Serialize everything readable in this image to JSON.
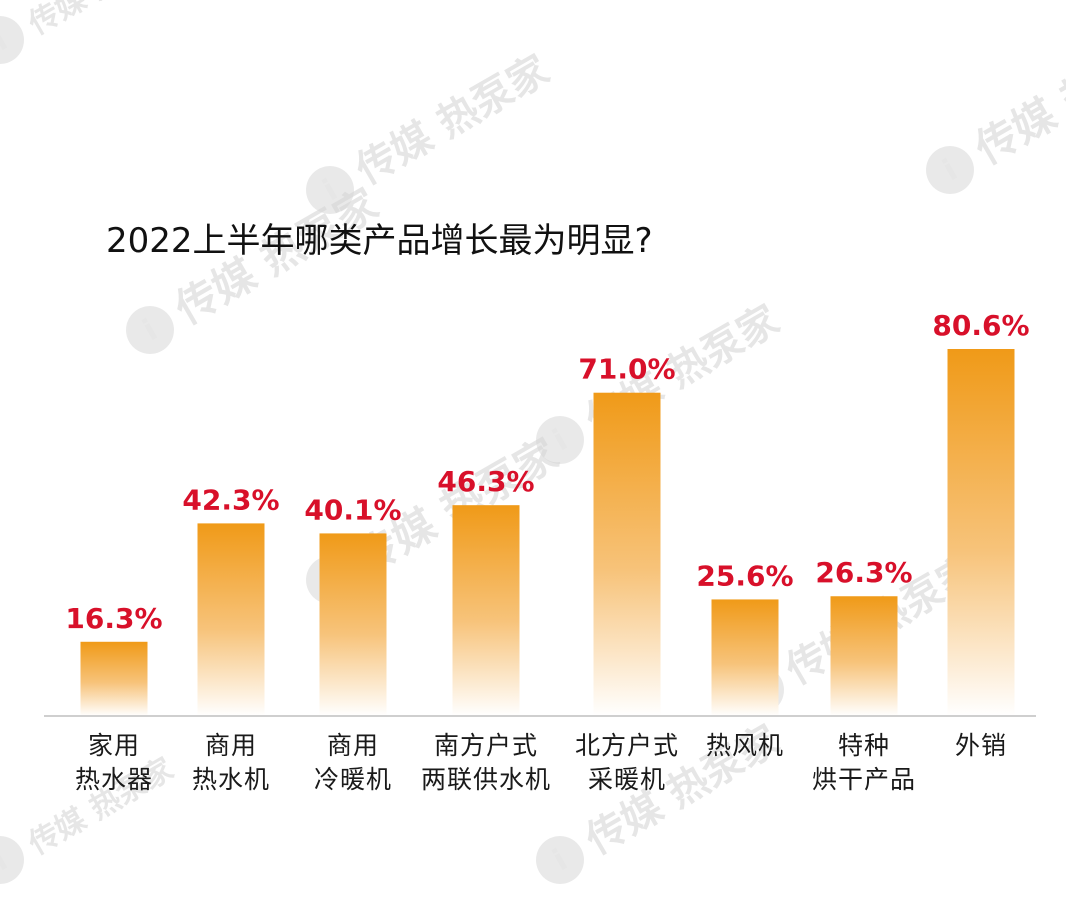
{
  "watermark": {
    "text": "传媒 热泵家"
  },
  "chart_data": {
    "type": "bar",
    "title": "2022上半年哪类产品增长最为明显?",
    "categories": [
      [
        "家用",
        "热水器"
      ],
      [
        "商用",
        "热水机"
      ],
      [
        "商用",
        "冷暖机"
      ],
      [
        "南方户式",
        "两联供水机"
      ],
      [
        "北方户式",
        "采暖机"
      ],
      [
        "热风机"
      ],
      [
        "特种",
        "烘干产品"
      ],
      [
        "外销"
      ]
    ],
    "values": [
      16.3,
      42.3,
      40.1,
      46.3,
      71.0,
      25.6,
      26.3,
      80.6
    ],
    "value_labels": [
      "16.3%",
      "42.3%",
      "40.1%",
      "46.3%",
      "71.0%",
      "25.6%",
      "26.3%",
      "80.6%"
    ],
    "unit": "%",
    "ylim": [
      0,
      80.6
    ],
    "grid": false,
    "legend": "none",
    "colors": {
      "bar_top": "#f09a18",
      "bar_bottom": "#ffffff",
      "value_label": "#d8102a",
      "baseline": "#cfcfcf"
    }
  }
}
